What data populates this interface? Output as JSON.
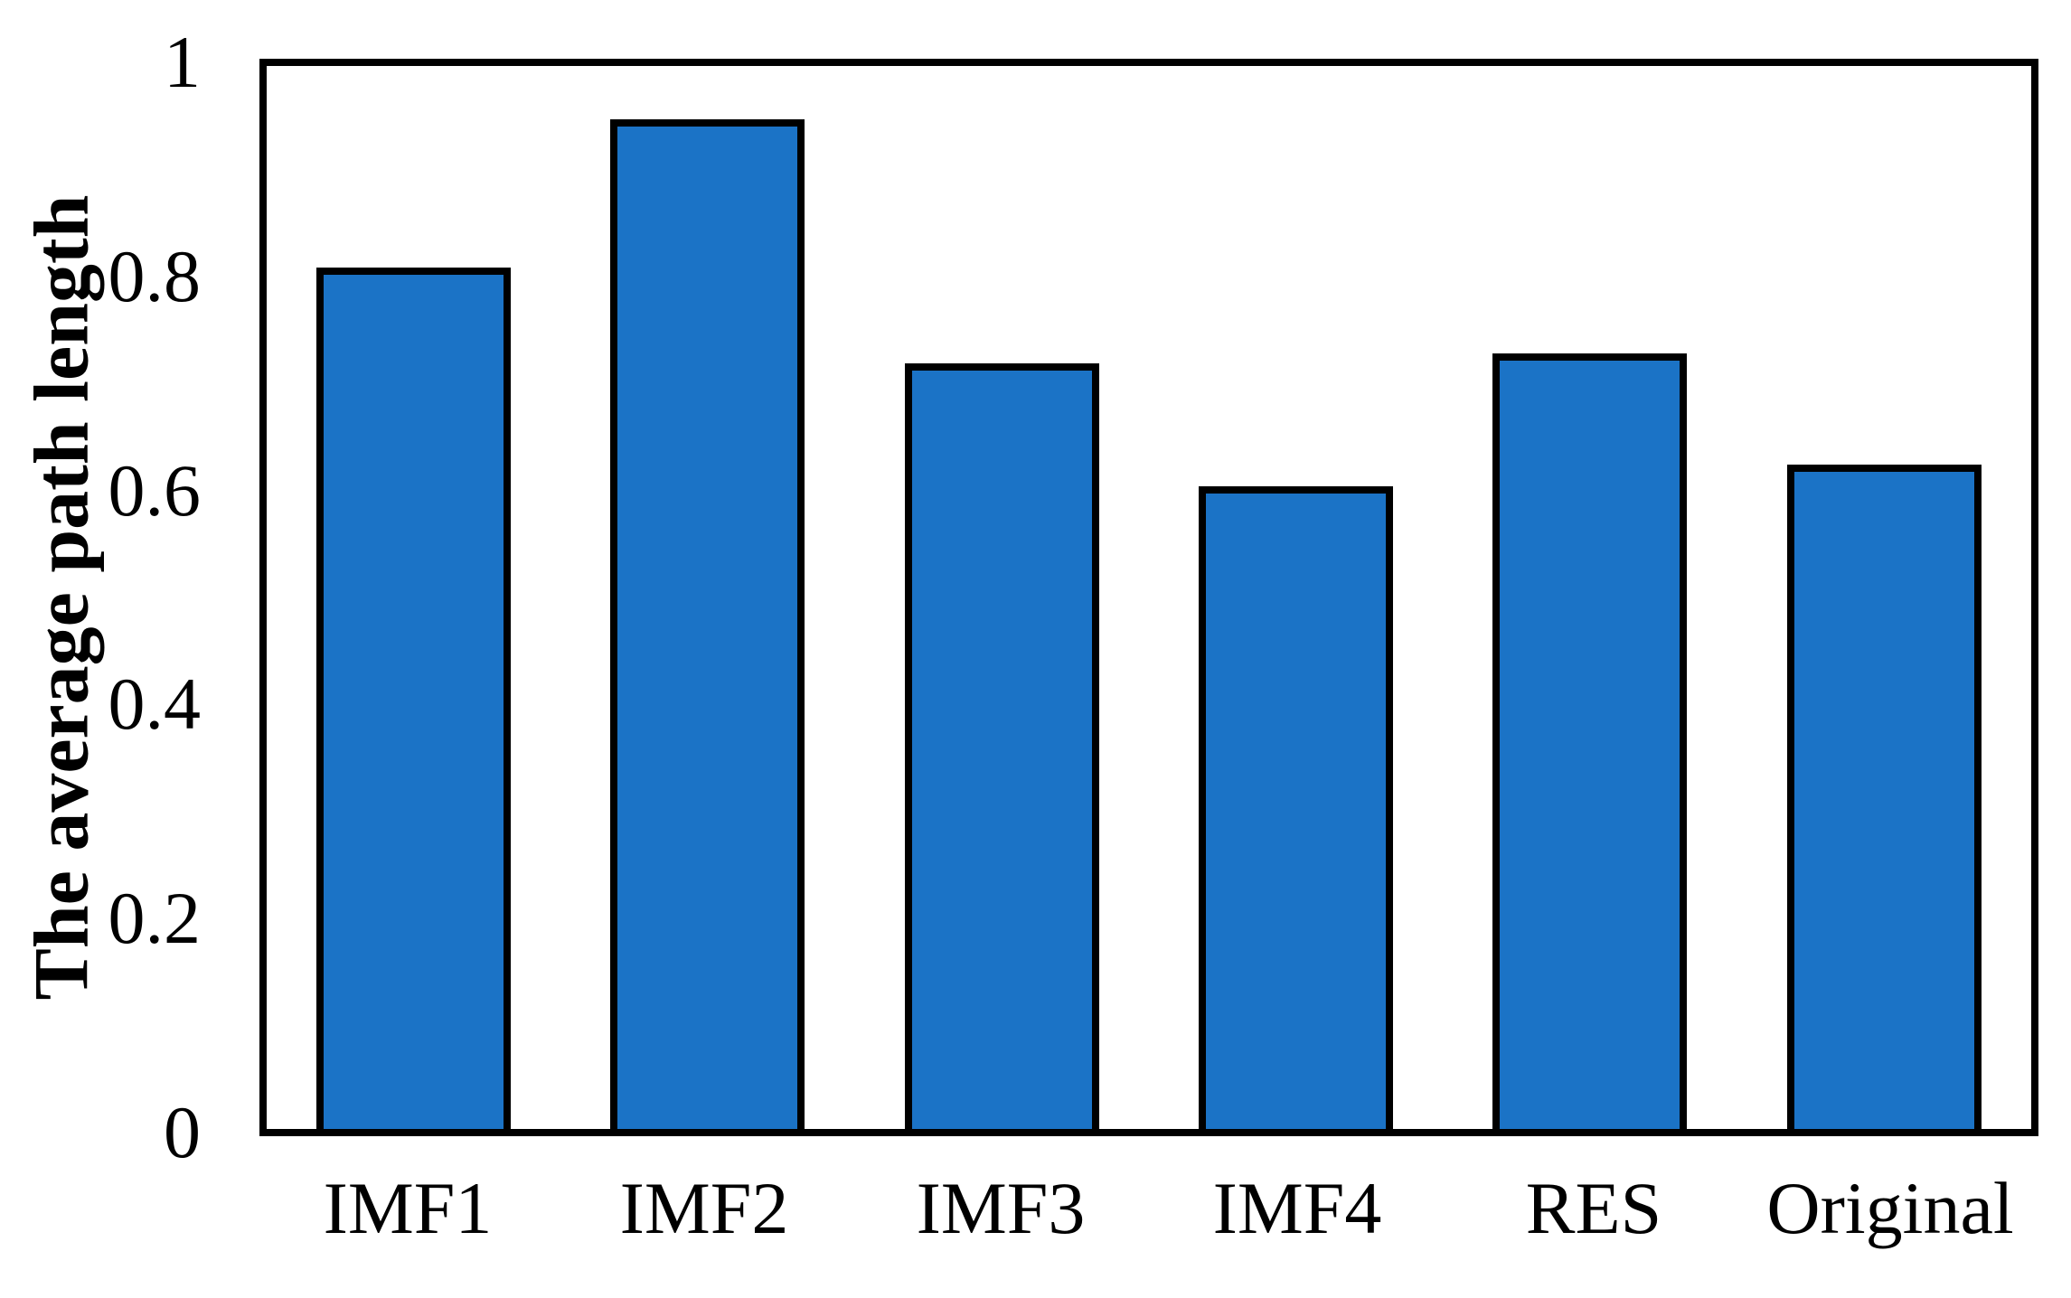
{
  "chart_data": {
    "type": "bar",
    "title": "",
    "xlabel": "",
    "ylabel": "The average path length",
    "categories": [
      "IMF1",
      "IMF2",
      "IMF3",
      "IMF4",
      "RES",
      "Original"
    ],
    "values": [
      0.81,
      0.95,
      0.72,
      0.605,
      0.73,
      0.625
    ],
    "ylim": [
      0,
      1
    ],
    "yticks": [
      0,
      0.2,
      0.4,
      0.6,
      0.8,
      1
    ],
    "ytick_labels": [
      "0",
      "0.2",
      "0.4",
      "0.6",
      "0.8",
      "1"
    ],
    "grid": false,
    "legend": false,
    "colors": {
      "bar_fill": "#1B73C6",
      "bar_border": "#000000",
      "axis_frame": "#000000",
      "background": "#FFFFFF",
      "text": "#000000"
    }
  }
}
